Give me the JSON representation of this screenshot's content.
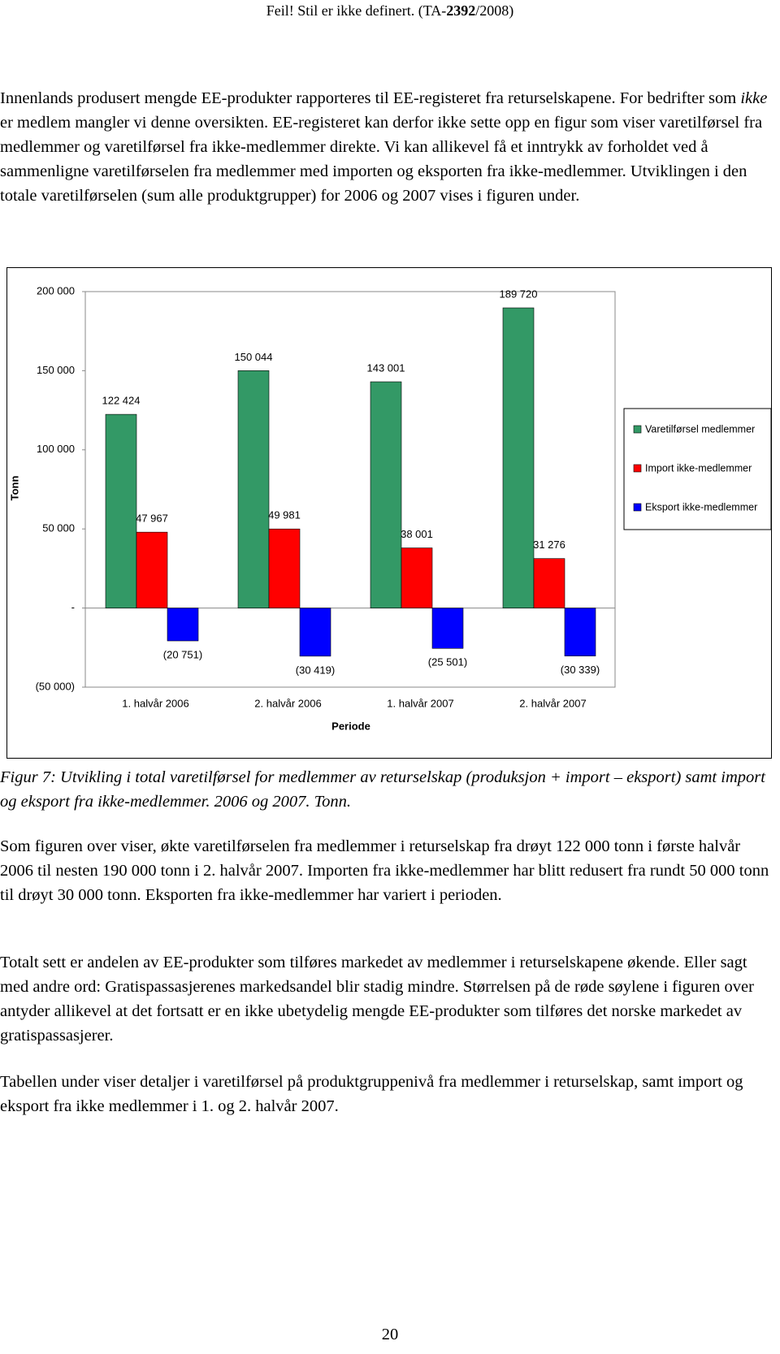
{
  "header": {
    "parts": [
      "Feil! Stil er ikke definert. (TA-",
      "2392",
      "/2008)"
    ]
  },
  "paragraphs": [
    [
      "Innenlands produsert mengde EE-produkter rapporteres til EE-registeret fra returselskapene. For bedrifter som ",
      "ikke",
      " er medlem mangler vi denne oversikten. EE-registeret kan derfor ikke sette opp en figur som viser varetilførsel fra medlemmer og varetilførsel fra ikke-medlemmer direkte. Vi kan allikevel få et inntrykk av forholdet ved å sammenligne varetilførselen fra medlemmer med importen og eksporten fra ikke-medlemmer. Utviklingen i den totale varetilførselen (sum alle produktgrupper) for 2006 og 2007 vises i figuren under."
    ],
    [
      "Som figuren over viser, økte varetilførselen fra medlemmer i returselskap fra drøyt 122 000 tonn i første halvår 2006 til nesten 190 000 tonn i 2. halvår 2007. Importen fra ikke-medlemmer har blitt redusert fra rundt 50 000 tonn til drøyt 30 000 tonn. Eksporten fra ikke-medlemmer har variert i perioden."
    ],
    [
      "Totalt sett er andelen av EE-produkter som tilføres markedet av medlemmer i returselskapene økende. Eller sagt med andre ord: Gratispassasjerenes markedsandel blir stadig mindre. Størrelsen på de røde søylene i figuren over antyder allikevel at det fortsatt er en ikke ubetydelig mengde EE-produkter som tilføres det norske markedet av gratispassasjerer."
    ],
    [
      "Tabellen under viser detaljer i varetilførsel på produktgruppenivå fra medlemmer i returselskap, samt import og eksport fra ikke medlemmer i 1. og 2. halvår 2007."
    ]
  ],
  "caption": "Figur 7: Utvikling i total varetilførsel for medlemmer av returselskap (produksjon + import – eksport) samt import og eksport fra ikke-medlemmer. 2006 og 2007. Tonn.",
  "page_number": "20",
  "chart_data": {
    "type": "bar",
    "x_label": "Periode",
    "y_label": "Tonn",
    "categories": [
      "1. halvår 2006",
      "2. halvår 2006",
      "1. halvår 2007",
      "2. halvår 2007"
    ],
    "series": [
      {
        "name": "Varetilførsel medlemmer",
        "color": "#339966",
        "values": [
          122424,
          150044,
          143001,
          189720
        ],
        "value_labels": [
          "122 424",
          "150 044",
          "143 001",
          "189 720"
        ]
      },
      {
        "name": "Import ikke-medlemmer",
        "color": "#ff0000",
        "values": [
          47967,
          49981,
          38001,
          31276
        ],
        "value_labels": [
          "47 967",
          "49 981",
          "38 001",
          "31 276"
        ]
      },
      {
        "name": "Eksport ikke-medlemmer",
        "color": "#0000ff",
        "values": [
          -20751,
          -30419,
          -25501,
          -30339
        ],
        "value_labels": [
          "(20 751)",
          "(30 419)",
          "(25 501)",
          "(30 339)"
        ]
      }
    ],
    "ylim": [
      -50000,
      200000
    ],
    "yticks": [
      {
        "value": -50000,
        "label": "(50 000)"
      },
      {
        "value": 0,
        "label": "-"
      },
      {
        "value": 50000,
        "label": "50 000"
      },
      {
        "value": 100000,
        "label": "100 000"
      },
      {
        "value": 150000,
        "label": "150 000"
      },
      {
        "value": 200000,
        "label": "200 000"
      }
    ],
    "legend": "right",
    "grid": false
  }
}
